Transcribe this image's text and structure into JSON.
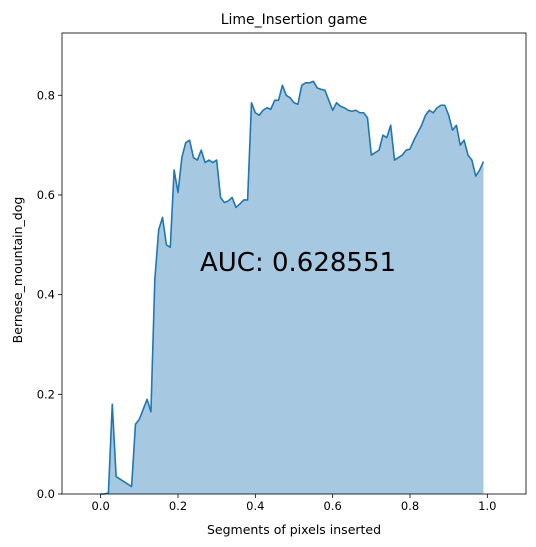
{
  "chart_data": {
    "type": "area",
    "title": "Lime_Insertion game",
    "xlabel": "Segments of pixels inserted",
    "ylabel": "Bernese_mountain_dog",
    "annotation": "AUC: 0.628551",
    "xlim": [
      -0.1,
      1.1
    ],
    "ylim": [
      0,
      0.925
    ],
    "xticks": [
      0.0,
      0.2,
      0.4,
      0.6,
      0.8,
      1.0
    ],
    "xtick_labels": [
      "0.0",
      "0.2",
      "0.4",
      "0.6",
      "0.8",
      "1.0"
    ],
    "yticks": [
      0.0,
      0.2,
      0.4,
      0.6,
      0.8
    ],
    "ytick_labels": [
      "0.0",
      "0.2",
      "0.4",
      "0.6",
      "0.8"
    ],
    "grid": false,
    "line_color": "#1f77b4",
    "fill_color": "#a6c8e1",
    "series": [
      {
        "x": [
          0.0,
          0.01,
          0.02,
          0.03,
          0.04,
          0.05,
          0.06,
          0.07,
          0.08,
          0.09,
          0.1,
          0.11,
          0.12,
          0.13,
          0.14,
          0.15,
          0.16,
          0.17,
          0.18,
          0.19,
          0.2,
          0.21,
          0.22,
          0.23,
          0.24,
          0.25,
          0.26,
          0.27,
          0.28,
          0.29,
          0.3,
          0.31,
          0.32,
          0.33,
          0.34,
          0.35,
          0.36,
          0.37,
          0.38,
          0.39,
          0.4,
          0.41,
          0.42,
          0.43,
          0.44,
          0.45,
          0.46,
          0.47,
          0.48,
          0.49,
          0.5,
          0.51,
          0.52,
          0.53,
          0.54,
          0.55,
          0.56,
          0.57,
          0.58,
          0.59,
          0.6,
          0.61,
          0.62,
          0.63,
          0.64,
          0.65,
          0.66,
          0.67,
          0.68,
          0.69,
          0.7,
          0.71,
          0.72,
          0.73,
          0.74,
          0.75,
          0.76,
          0.77,
          0.78,
          0.79,
          0.8,
          0.81,
          0.82,
          0.83,
          0.84,
          0.85,
          0.86,
          0.87,
          0.88,
          0.89,
          0.9,
          0.91,
          0.92,
          0.93,
          0.94,
          0.95,
          0.96,
          0.97,
          0.98,
          0.99
        ],
        "y": [
          0.0,
          0.0,
          0.002,
          0.18,
          0.035,
          0.03,
          0.025,
          0.02,
          0.015,
          0.14,
          0.15,
          0.17,
          0.19,
          0.165,
          0.43,
          0.53,
          0.555,
          0.5,
          0.495,
          0.65,
          0.605,
          0.675,
          0.705,
          0.71,
          0.675,
          0.67,
          0.69,
          0.665,
          0.67,
          0.665,
          0.67,
          0.595,
          0.585,
          0.588,
          0.595,
          0.575,
          0.582,
          0.59,
          0.59,
          0.785,
          0.765,
          0.76,
          0.77,
          0.775,
          0.772,
          0.79,
          0.79,
          0.82,
          0.8,
          0.795,
          0.785,
          0.782,
          0.82,
          0.825,
          0.825,
          0.828,
          0.815,
          0.812,
          0.81,
          0.79,
          0.77,
          0.785,
          0.778,
          0.775,
          0.77,
          0.768,
          0.77,
          0.765,
          0.765,
          0.755,
          0.68,
          0.685,
          0.69,
          0.72,
          0.715,
          0.74,
          0.67,
          0.675,
          0.68,
          0.69,
          0.692,
          0.71,
          0.725,
          0.74,
          0.76,
          0.77,
          0.765,
          0.775,
          0.78,
          0.78,
          0.76,
          0.73,
          0.74,
          0.7,
          0.71,
          0.68,
          0.67,
          0.638,
          0.65,
          0.667
        ]
      }
    ]
  }
}
